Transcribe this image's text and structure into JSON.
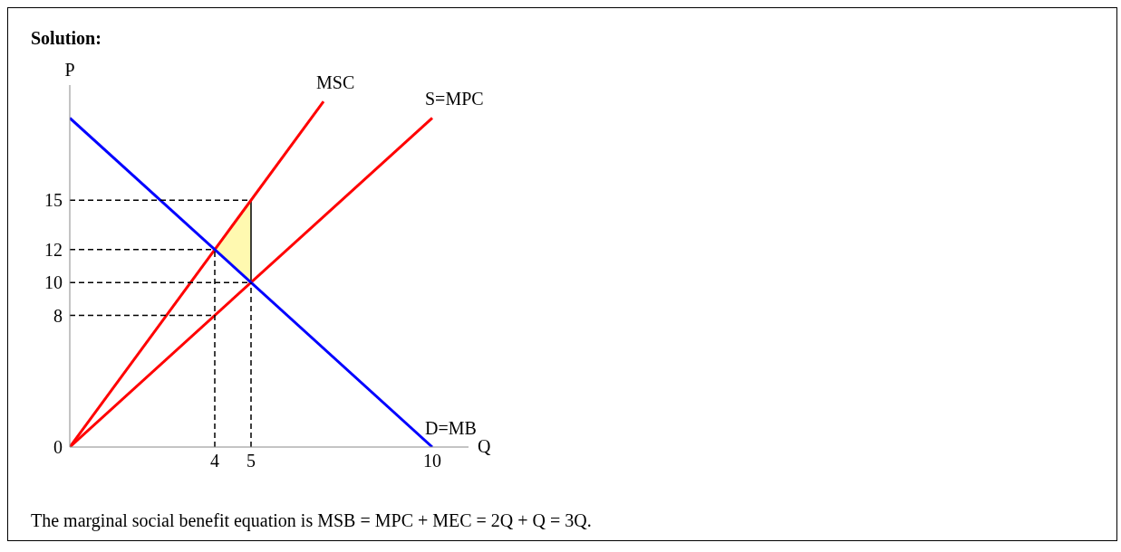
{
  "chart_data": {
    "type": "line",
    "title": "Solution:",
    "xlabel": "Q",
    "ylabel": "P",
    "xlim": [
      0,
      11
    ],
    "ylim": [
      0,
      22
    ],
    "xticks": [
      4,
      5,
      10
    ],
    "yticks": [
      0,
      8,
      10,
      12,
      15
    ],
    "marker": "none",
    "line_style": "solid",
    "series": [
      {
        "name": "MSC",
        "color": "#ff0000",
        "x": [
          0,
          7
        ],
        "values": [
          0,
          21
        ]
      },
      {
        "name": "S=MPC",
        "color": "#ff0000",
        "x": [
          0,
          10
        ],
        "values": [
          0,
          20
        ]
      },
      {
        "name": "D=MB",
        "color": "#0000ff",
        "x": [
          0,
          10
        ],
        "values": [
          20,
          0
        ]
      },
      {
        "color": "#000000",
        "line_style": "dashed",
        "x": [
          0,
          5
        ],
        "values": [
          15,
          15
        ]
      },
      {
        "color": "#000000",
        "line_style": "dashed",
        "x": [
          0,
          4
        ],
        "values": [
          12,
          12
        ]
      },
      {
        "color": "#000000",
        "line_style": "dashed",
        "x": [
          0,
          5
        ],
        "values": [
          10,
          10
        ]
      },
      {
        "color": "#000000",
        "line_style": "dashed",
        "x": [
          0,
          4
        ],
        "values": [
          8,
          8
        ]
      },
      {
        "color": "#000000",
        "line_style": "dashed",
        "x": [
          4,
          4
        ],
        "values": [
          0,
          12
        ]
      },
      {
        "color": "#000000",
        "line_style": "dashed",
        "x": [
          5,
          5
        ],
        "values": [
          0,
          10
        ]
      },
      {
        "type": "area",
        "color": "#fff9b0",
        "x": [
          4,
          5,
          5,
          4
        ],
        "values": [
          12,
          15,
          10,
          12
        ]
      }
    ],
    "annotations": [
      "The marginal social benefit equation is MSB = MPC + MEC = 2Q + Q = 3Q."
    ]
  }
}
